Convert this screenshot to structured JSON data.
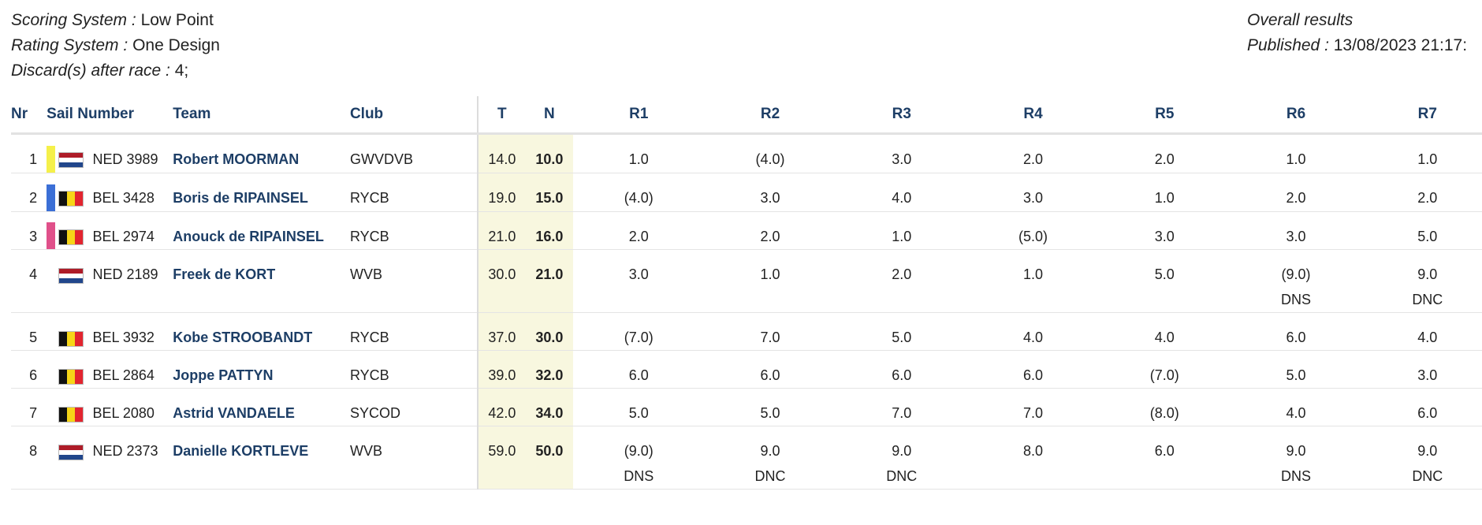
{
  "header": {
    "scoring_label": "Scoring System :",
    "scoring_value": "Low Point",
    "rating_label": "Rating System :",
    "rating_value": "One Design",
    "discard_label": "Discard(s) after race :",
    "discard_value": "4;",
    "overall_title": "Overall results",
    "published_label": "Published :",
    "published_value": "13/08/2023 21:17:"
  },
  "columns": {
    "nr": "Nr",
    "sail": "Sail Number",
    "team": "Team",
    "club": "Club",
    "t": "T",
    "n": "N",
    "r1": "R1",
    "r2": "R2",
    "r3": "R3",
    "r4": "R4",
    "r5": "R5",
    "r6": "R6",
    "r7": "R7"
  },
  "colors": {
    "gold": "#f5f04a",
    "blue": "#3b6fd6",
    "pink": "#e0508a",
    "header_text": "#1d3e66",
    "score_bg": "#f8f7df"
  },
  "rows": [
    {
      "nr": "1",
      "medal": "gold",
      "flag": "NED",
      "sail": "NED 3989",
      "team": "Robert MOORMAN",
      "club": "GWVDVB",
      "t": "14.0",
      "n": "10.0",
      "races": [
        {
          "s": "1.0",
          "c": ""
        },
        {
          "s": "(4.0)",
          "c": ""
        },
        {
          "s": "3.0",
          "c": ""
        },
        {
          "s": "2.0",
          "c": ""
        },
        {
          "s": "2.0",
          "c": ""
        },
        {
          "s": "1.0",
          "c": ""
        },
        {
          "s": "1.0",
          "c": ""
        }
      ]
    },
    {
      "nr": "2",
      "medal": "blue",
      "flag": "BEL",
      "sail": "BEL 3428",
      "team": "Boris de RIPAINSEL",
      "club": "RYCB",
      "t": "19.0",
      "n": "15.0",
      "races": [
        {
          "s": "(4.0)",
          "c": ""
        },
        {
          "s": "3.0",
          "c": ""
        },
        {
          "s": "4.0",
          "c": ""
        },
        {
          "s": "3.0",
          "c": ""
        },
        {
          "s": "1.0",
          "c": ""
        },
        {
          "s": "2.0",
          "c": ""
        },
        {
          "s": "2.0",
          "c": ""
        }
      ]
    },
    {
      "nr": "3",
      "medal": "pink",
      "flag": "BEL",
      "sail": "BEL 2974",
      "team": "Anouck de RIPAINSEL",
      "club": "RYCB",
      "t": "21.0",
      "n": "16.0",
      "races": [
        {
          "s": "2.0",
          "c": ""
        },
        {
          "s": "2.0",
          "c": ""
        },
        {
          "s": "1.0",
          "c": ""
        },
        {
          "s": "(5.0)",
          "c": ""
        },
        {
          "s": "3.0",
          "c": ""
        },
        {
          "s": "3.0",
          "c": ""
        },
        {
          "s": "5.0",
          "c": ""
        }
      ]
    },
    {
      "nr": "4",
      "medal": "",
      "flag": "NED",
      "sail": "NED 2189",
      "team": "Freek de KORT",
      "club": "WVB",
      "t": "30.0",
      "n": "21.0",
      "races": [
        {
          "s": "3.0",
          "c": ""
        },
        {
          "s": "1.0",
          "c": ""
        },
        {
          "s": "2.0",
          "c": ""
        },
        {
          "s": "1.0",
          "c": ""
        },
        {
          "s": "5.0",
          "c": ""
        },
        {
          "s": "(9.0)",
          "c": "DNS"
        },
        {
          "s": "9.0",
          "c": "DNC"
        }
      ]
    },
    {
      "nr": "5",
      "medal": "",
      "flag": "BEL",
      "sail": "BEL 3932",
      "team": "Kobe STROOBANDT",
      "club": "RYCB",
      "t": "37.0",
      "n": "30.0",
      "races": [
        {
          "s": "(7.0)",
          "c": ""
        },
        {
          "s": "7.0",
          "c": ""
        },
        {
          "s": "5.0",
          "c": ""
        },
        {
          "s": "4.0",
          "c": ""
        },
        {
          "s": "4.0",
          "c": ""
        },
        {
          "s": "6.0",
          "c": ""
        },
        {
          "s": "4.0",
          "c": ""
        }
      ]
    },
    {
      "nr": "6",
      "medal": "",
      "flag": "BEL",
      "sail": "BEL 2864",
      "team": "Joppe PATTYN",
      "club": "RYCB",
      "t": "39.0",
      "n": "32.0",
      "races": [
        {
          "s": "6.0",
          "c": ""
        },
        {
          "s": "6.0",
          "c": ""
        },
        {
          "s": "6.0",
          "c": ""
        },
        {
          "s": "6.0",
          "c": ""
        },
        {
          "s": "(7.0)",
          "c": ""
        },
        {
          "s": "5.0",
          "c": ""
        },
        {
          "s": "3.0",
          "c": ""
        }
      ]
    },
    {
      "nr": "7",
      "medal": "",
      "flag": "BEL",
      "sail": "BEL 2080",
      "team": "Astrid VANDAELE",
      "club": "SYCOD",
      "t": "42.0",
      "n": "34.0",
      "races": [
        {
          "s": "5.0",
          "c": ""
        },
        {
          "s": "5.0",
          "c": ""
        },
        {
          "s": "7.0",
          "c": ""
        },
        {
          "s": "7.0",
          "c": ""
        },
        {
          "s": "(8.0)",
          "c": ""
        },
        {
          "s": "4.0",
          "c": ""
        },
        {
          "s": "6.0",
          "c": ""
        }
      ]
    },
    {
      "nr": "8",
      "medal": "",
      "flag": "NED",
      "sail": "NED 2373",
      "team": "Danielle KORTLEVE",
      "club": "WVB",
      "t": "59.0",
      "n": "50.0",
      "races": [
        {
          "s": "(9.0)",
          "c": "DNS"
        },
        {
          "s": "9.0",
          "c": "DNC"
        },
        {
          "s": "9.0",
          "c": "DNC"
        },
        {
          "s": "8.0",
          "c": ""
        },
        {
          "s": "6.0",
          "c": ""
        },
        {
          "s": "9.0",
          "c": "DNS"
        },
        {
          "s": "9.0",
          "c": "DNC"
        }
      ]
    }
  ]
}
